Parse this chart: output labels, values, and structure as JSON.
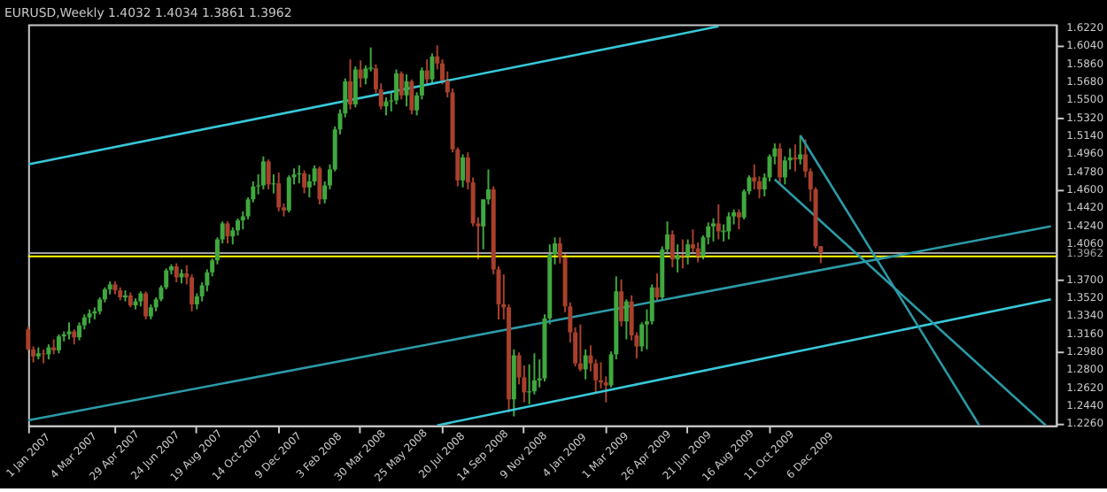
{
  "chart_data": {
    "type": "candlestick",
    "title": "EURUSD,Weekly  1.4032 1.4034 1.3861 1.3962",
    "colors": [
      "#a8402c",
      "#a8402c",
      "#3fa83f",
      "#a8402c",
      "#3fa83f",
      "#a8402c",
      "#3fa83f",
      "#3fa83f",
      "#3fa83f",
      "#a8402c",
      "#3fa83f",
      "#3fa83f",
      "#3fa83f",
      "#3fa83f",
      "#3fa83f",
      "#3fa83f",
      "#3fa83f",
      "#a8402c",
      "#a8402c",
      "#3fa83f",
      "#a8402c",
      "#3fa83f",
      "#3fa83f",
      "#a8402c",
      "#3fa83f",
      "#3fa83f",
      "#3fa83f",
      "#3fa83f",
      "#3fa83f",
      "#a8402c",
      "#3fa83f",
      "#a8402c",
      "#a8402c",
      "#3fa83f",
      "#3fa83f",
      "#3fa83f",
      "#3fa83f",
      "#3fa83f",
      "#3fa83f",
      "#a8402c",
      "#3fa83f",
      "#3fa83f",
      "#3fa83f",
      "#3fa83f",
      "#3fa83f",
      "#3fa83f",
      "#3fa83f",
      "#a8402c",
      "#3fa83f",
      "#a8402c",
      "#a8402c",
      "#3fa83f",
      "#3fa83f",
      "#3fa83f",
      "#a8402c",
      "#3fa83f",
      "#3fa83f",
      "#a8402c",
      "#3fa83f",
      "#3fa83f",
      "#3fa83f",
      "#3fa83f",
      "#3fa83f",
      "#a8402c",
      "#3fa83f",
      "#a8402c",
      "#3fa83f",
      "#3fa83f",
      "#a8402c",
      "#a8402c",
      "#3fa83f",
      "#3fa83f",
      "#3fa83f",
      "#a8402c",
      "#3fa83f",
      "#a8402c",
      "#3fa83f",
      "#3fa83f",
      "#a8402c",
      "#3fa83f",
      "#a8402c",
      "#a8402c",
      "#a8402c",
      "#a8402c",
      "#a8402c",
      "#3fa83f",
      "#a8402c",
      "#a8402c",
      "#a8402c",
      "#3fa83f",
      "#3fa83f",
      "#a8402c",
      "#a8402c",
      "#a8402c",
      "#a8402c",
      "#3fa83f",
      "#a8402c",
      "#a8402c",
      "#3fa83f",
      "#3fa83f",
      "#3fa83f",
      "#3fa83f",
      "#3fa83f",
      "#3fa83f",
      "#a8402c",
      "#a8402c",
      "#a8402c",
      "#a8402c",
      "#a8402c",
      "#3fa83f",
      "#a8402c",
      "#a8402c",
      "#a8402c",
      "#a8402c",
      "#3fa83f",
      "#3fa83f",
      "#a8402c",
      "#3fa83f",
      "#a8402c",
      "#a8402c",
      "#3fa83f",
      "#3fa83f",
      "#3fa83f",
      "#a8402c",
      "#3fa83f",
      "#3fa83f",
      "#a8402c",
      "#3fa83f",
      "#a8402c",
      "#3fa83f",
      "#a8402c",
      "#a8402c",
      "#3fa83f",
      "#3fa83f",
      "#3fa83f",
      "#a8402c",
      "#3fa83f",
      "#3fa83f",
      "#3fa83f",
      "#a8402c",
      "#3fa83f",
      "#3fa83f",
      "#a8402c",
      "#a8402c",
      "#3fa83f",
      "#3fa83f",
      "#3fa83f",
      "#a8402c",
      "#3fa83f",
      "#3fa83f",
      "#a8402c",
      "#3fa83f",
      "#a8402c",
      "#a8402c",
      "#a8402c",
      "#a8402c"
    ],
    "x": [
      "2007-01-01",
      "2007-01-08",
      "2007-01-15",
      "2007-01-22",
      "2007-01-29",
      "2007-02-05",
      "2007-02-12",
      "2007-02-19",
      "2007-02-26",
      "2007-03-05",
      "2007-03-12",
      "2007-03-19",
      "2007-03-26",
      "2007-04-02",
      "2007-04-09",
      "2007-04-16",
      "2007-04-23",
      "2007-04-30",
      "2007-05-07",
      "2007-05-14",
      "2007-05-21",
      "2007-05-28",
      "2007-06-04",
      "2007-06-11",
      "2007-06-18",
      "2007-06-25",
      "2007-07-02",
      "2007-07-09",
      "2007-07-16",
      "2007-07-23",
      "2007-07-30",
      "2007-08-06",
      "2007-08-13",
      "2007-08-20",
      "2007-08-27",
      "2007-09-03",
      "2007-09-10",
      "2007-09-17",
      "2007-09-24",
      "2007-10-01",
      "2007-10-08",
      "2007-10-15",
      "2007-10-22",
      "2007-10-29",
      "2007-11-05",
      "2007-11-12",
      "2007-11-19",
      "2007-11-26",
      "2007-12-03",
      "2007-12-10",
      "2007-12-17",
      "2007-12-24",
      "2007-12-31",
      "2008-01-07",
      "2008-01-14",
      "2008-01-21",
      "2008-01-28",
      "2008-02-04",
      "2008-02-11",
      "2008-02-18",
      "2008-02-25",
      "2008-03-03",
      "2008-03-10",
      "2008-03-17",
      "2008-03-24",
      "2008-03-31",
      "2008-04-07",
      "2008-04-14",
      "2008-04-21",
      "2008-04-28",
      "2008-05-05",
      "2008-05-12",
      "2008-05-19",
      "2008-05-26",
      "2008-06-02",
      "2008-06-09",
      "2008-06-16",
      "2008-06-23",
      "2008-06-30",
      "2008-07-07",
      "2008-07-14",
      "2008-07-21",
      "2008-07-28",
      "2008-08-04",
      "2008-08-11",
      "2008-08-18",
      "2008-08-25",
      "2008-09-01",
      "2008-09-08",
      "2008-09-15",
      "2008-09-22",
      "2008-09-29",
      "2008-10-06",
      "2008-10-13",
      "2008-10-20",
      "2008-10-27",
      "2008-11-03",
      "2008-11-10",
      "2008-11-17",
      "2008-11-24",
      "2008-12-01",
      "2008-12-08",
      "2008-12-15",
      "2008-12-22",
      "2008-12-29",
      "2009-01-05",
      "2009-01-12",
      "2009-01-19",
      "2009-01-26",
      "2009-02-02",
      "2009-02-09",
      "2009-02-16",
      "2009-02-23",
      "2009-03-02",
      "2009-03-09",
      "2009-03-16",
      "2009-03-23",
      "2009-03-30",
      "2009-04-06",
      "2009-04-13",
      "2009-04-20",
      "2009-04-27",
      "2009-05-04",
      "2009-05-11",
      "2009-05-18",
      "2009-05-25",
      "2009-06-01",
      "2009-06-08",
      "2009-06-15",
      "2009-06-22",
      "2009-06-29",
      "2009-07-06",
      "2009-07-13",
      "2009-07-20",
      "2009-07-27",
      "2009-08-03",
      "2009-08-10",
      "2009-08-17",
      "2009-08-24",
      "2009-08-31",
      "2009-09-07",
      "2009-09-14",
      "2009-09-21",
      "2009-09-28",
      "2009-10-05",
      "2009-10-12",
      "2009-10-19",
      "2009-10-26",
      "2009-11-02",
      "2009-11-09",
      "2009-11-16",
      "2009-11-23",
      "2009-11-30",
      "2009-12-07",
      "2009-12-14",
      "2009-12-21"
    ],
    "ohlc": [
      [
        1.32,
        1.323,
        1.299,
        1.3
      ],
      [
        1.3,
        1.303,
        1.287,
        1.293
      ],
      [
        1.293,
        1.302,
        1.29,
        1.296
      ],
      [
        1.296,
        1.3,
        1.286,
        1.295
      ],
      [
        1.295,
        1.305,
        1.29,
        1.302
      ],
      [
        1.302,
        1.31,
        1.295,
        1.299
      ],
      [
        1.299,
        1.315,
        1.296,
        1.313
      ],
      [
        1.313,
        1.318,
        1.308,
        1.315
      ],
      [
        1.315,
        1.327,
        1.31,
        1.318
      ],
      [
        1.318,
        1.32,
        1.305,
        1.312
      ],
      [
        1.312,
        1.327,
        1.309,
        1.324
      ],
      [
        1.324,
        1.335,
        1.32,
        1.332
      ],
      [
        1.332,
        1.34,
        1.326,
        1.336
      ],
      [
        1.336,
        1.342,
        1.33,
        1.338
      ],
      [
        1.338,
        1.352,
        1.335,
        1.35
      ],
      [
        1.35,
        1.362,
        1.347,
        1.36
      ],
      [
        1.36,
        1.368,
        1.355,
        1.365
      ],
      [
        1.365,
        1.368,
        1.355,
        1.359
      ],
      [
        1.359,
        1.362,
        1.349,
        1.352
      ],
      [
        1.352,
        1.359,
        1.348,
        1.354
      ],
      [
        1.354,
        1.357,
        1.342,
        1.344
      ],
      [
        1.344,
        1.351,
        1.34,
        1.348
      ],
      [
        1.348,
        1.358,
        1.343,
        1.356
      ],
      [
        1.356,
        1.358,
        1.33,
        1.333
      ],
      [
        1.333,
        1.345,
        1.33,
        1.342
      ],
      [
        1.342,
        1.352,
        1.338,
        1.35
      ],
      [
        1.35,
        1.364,
        1.348,
        1.362
      ],
      [
        1.362,
        1.381,
        1.36,
        1.379
      ],
      [
        1.379,
        1.385,
        1.375,
        1.383
      ],
      [
        1.383,
        1.386,
        1.367,
        1.372
      ],
      [
        1.372,
        1.38,
        1.366,
        1.376
      ],
      [
        1.376,
        1.384,
        1.365,
        1.372
      ],
      [
        1.372,
        1.375,
        1.338,
        1.345
      ],
      [
        1.345,
        1.356,
        1.34,
        1.353
      ],
      [
        1.353,
        1.367,
        1.348,
        1.364
      ],
      [
        1.364,
        1.38,
        1.358,
        1.377
      ],
      [
        1.377,
        1.391,
        1.373,
        1.389
      ],
      [
        1.389,
        1.412,
        1.385,
        1.41
      ],
      [
        1.41,
        1.428,
        1.406,
        1.426
      ],
      [
        1.426,
        1.428,
        1.406,
        1.413
      ],
      [
        1.413,
        1.422,
        1.405,
        1.419
      ],
      [
        1.419,
        1.431,
        1.414,
        1.429
      ],
      [
        1.429,
        1.438,
        1.42,
        1.433
      ],
      [
        1.433,
        1.452,
        1.43,
        1.45
      ],
      [
        1.45,
        1.468,
        1.447,
        1.463
      ],
      [
        1.463,
        1.475,
        1.455,
        1.464
      ],
      [
        1.464,
        1.493,
        1.46,
        1.488
      ],
      [
        1.488,
        1.49,
        1.46,
        1.465
      ],
      [
        1.465,
        1.475,
        1.456,
        1.466
      ],
      [
        1.466,
        1.477,
        1.438,
        1.442
      ],
      [
        1.442,
        1.446,
        1.433,
        1.439
      ],
      [
        1.439,
        1.474,
        1.437,
        1.472
      ],
      [
        1.472,
        1.481,
        1.465,
        1.475
      ],
      [
        1.475,
        1.484,
        1.466,
        1.476
      ],
      [
        1.476,
        1.479,
        1.456,
        1.462
      ],
      [
        1.462,
        1.475,
        1.452,
        1.468
      ],
      [
        1.468,
        1.484,
        1.464,
        1.481
      ],
      [
        1.481,
        1.483,
        1.445,
        1.45
      ],
      [
        1.45,
        1.468,
        1.446,
        1.464
      ],
      [
        1.464,
        1.485,
        1.46,
        1.48
      ],
      [
        1.48,
        1.523,
        1.478,
        1.52
      ],
      [
        1.52,
        1.54,
        1.515,
        1.536
      ],
      [
        1.536,
        1.571,
        1.532,
        1.568
      ],
      [
        1.568,
        1.59,
        1.54,
        1.545
      ],
      [
        1.545,
        1.583,
        1.542,
        1.58
      ],
      [
        1.58,
        1.589,
        1.562,
        1.571
      ],
      [
        1.571,
        1.584,
        1.565,
        1.581
      ],
      [
        1.581,
        1.602,
        1.578,
        1.581
      ],
      [
        1.581,
        1.585,
        1.556,
        1.56
      ],
      [
        1.56,
        1.566,
        1.54,
        1.543
      ],
      [
        1.543,
        1.552,
        1.534,
        1.548
      ],
      [
        1.548,
        1.558,
        1.538,
        1.549
      ],
      [
        1.549,
        1.58,
        1.545,
        1.576
      ],
      [
        1.576,
        1.578,
        1.55,
        1.554
      ],
      [
        1.554,
        1.575,
        1.543,
        1.568
      ],
      [
        1.568,
        1.57,
        1.535,
        1.539
      ],
      [
        1.539,
        1.557,
        1.534,
        1.554
      ],
      [
        1.554,
        1.582,
        1.55,
        1.579
      ],
      [
        1.579,
        1.59,
        1.565,
        1.57
      ],
      [
        1.57,
        1.596,
        1.566,
        1.593
      ],
      [
        1.593,
        1.604,
        1.58,
        1.586
      ],
      [
        1.586,
        1.59,
        1.565,
        1.569
      ],
      [
        1.569,
        1.578,
        1.552,
        1.557
      ],
      [
        1.557,
        1.561,
        1.497,
        1.5
      ],
      [
        1.5,
        1.502,
        1.463,
        1.469
      ],
      [
        1.469,
        1.495,
        1.462,
        1.492
      ],
      [
        1.492,
        1.497,
        1.46,
        1.467
      ],
      [
        1.467,
        1.472,
        1.423,
        1.426
      ],
      [
        1.426,
        1.432,
        1.39,
        1.423
      ],
      [
        1.423,
        1.45,
        1.4,
        1.45
      ],
      [
        1.45,
        1.48,
        1.445,
        1.46
      ],
      [
        1.46,
        1.463,
        1.375,
        1.38
      ],
      [
        1.38,
        1.383,
        1.33,
        1.345
      ],
      [
        1.345,
        1.375,
        1.33,
        1.342
      ],
      [
        1.342,
        1.345,
        1.237,
        1.25
      ],
      [
        1.25,
        1.3,
        1.233,
        1.294
      ],
      [
        1.294,
        1.297,
        1.265,
        1.272
      ],
      [
        1.272,
        1.284,
        1.247,
        1.257
      ],
      [
        1.257,
        1.285,
        1.245,
        1.258
      ],
      [
        1.258,
        1.296,
        1.255,
        1.269
      ],
      [
        1.269,
        1.29,
        1.262,
        1.271
      ],
      [
        1.271,
        1.335,
        1.268,
        1.331
      ],
      [
        1.331,
        1.405,
        1.325,
        1.395
      ],
      [
        1.395,
        1.412,
        1.385,
        1.406
      ],
      [
        1.406,
        1.412,
        1.386,
        1.392
      ],
      [
        1.392,
        1.396,
        1.337,
        1.343
      ],
      [
        1.343,
        1.347,
        1.307,
        1.317
      ],
      [
        1.317,
        1.322,
        1.283,
        1.286
      ],
      [
        1.286,
        1.325,
        1.278,
        1.28
      ],
      [
        1.28,
        1.3,
        1.27,
        1.294
      ],
      [
        1.294,
        1.304,
        1.278,
        1.286
      ],
      [
        1.286,
        1.29,
        1.257,
        1.269
      ],
      [
        1.269,
        1.287,
        1.261,
        1.267
      ],
      [
        1.267,
        1.273,
        1.247,
        1.264
      ],
      [
        1.264,
        1.298,
        1.262,
        1.295
      ],
      [
        1.295,
        1.373,
        1.29,
        1.358
      ],
      [
        1.358,
        1.37,
        1.323,
        1.328
      ],
      [
        1.328,
        1.35,
        1.31,
        1.348
      ],
      [
        1.348,
        1.354,
        1.309,
        1.314
      ],
      [
        1.314,
        1.317,
        1.291,
        1.303
      ],
      [
        1.303,
        1.327,
        1.298,
        1.325
      ],
      [
        1.325,
        1.34,
        1.3,
        1.328
      ],
      [
        1.328,
        1.365,
        1.325,
        1.362
      ],
      [
        1.362,
        1.376,
        1.348,
        1.352
      ],
      [
        1.352,
        1.403,
        1.35,
        1.4
      ],
      [
        1.4,
        1.428,
        1.395,
        1.415
      ],
      [
        1.415,
        1.419,
        1.382,
        1.39
      ],
      [
        1.39,
        1.405,
        1.377,
        1.394
      ],
      [
        1.394,
        1.41,
        1.381,
        1.393
      ],
      [
        1.393,
        1.41,
        1.385,
        1.405
      ],
      [
        1.405,
        1.42,
        1.395,
        1.401
      ],
      [
        1.401,
        1.407,
        1.387,
        1.393
      ],
      [
        1.393,
        1.414,
        1.39,
        1.412
      ],
      [
        1.412,
        1.427,
        1.405,
        1.423
      ],
      [
        1.423,
        1.431,
        1.408,
        1.426
      ],
      [
        1.426,
        1.445,
        1.41,
        1.418
      ],
      [
        1.418,
        1.425,
        1.408,
        1.418
      ],
      [
        1.418,
        1.437,
        1.41,
        1.433
      ],
      [
        1.433,
        1.44,
        1.425,
        1.437
      ],
      [
        1.437,
        1.44,
        1.42,
        1.432
      ],
      [
        1.432,
        1.46,
        1.43,
        1.458
      ],
      [
        1.458,
        1.474,
        1.455,
        1.472
      ],
      [
        1.472,
        1.485,
        1.46,
        1.468
      ],
      [
        1.468,
        1.473,
        1.451,
        1.46
      ],
      [
        1.46,
        1.476,
        1.453,
        1.472
      ],
      [
        1.472,
        1.495,
        1.468,
        1.493
      ],
      [
        1.493,
        1.506,
        1.485,
        1.501
      ],
      [
        1.501,
        1.506,
        1.465,
        1.472
      ],
      [
        1.472,
        1.493,
        1.465,
        1.489
      ],
      [
        1.489,
        1.501,
        1.48,
        1.492
      ],
      [
        1.492,
        1.505,
        1.478,
        1.49
      ],
      [
        1.49,
        1.514,
        1.485,
        1.495
      ],
      [
        1.495,
        1.51,
        1.472,
        1.478
      ],
      [
        1.478,
        1.481,
        1.448,
        1.46
      ],
      [
        1.46,
        1.462,
        1.401,
        1.4032
      ],
      [
        1.4032,
        1.4034,
        1.3861,
        1.3962
      ]
    ],
    "series": [
      {
        "type": "line",
        "color": "#38c8d8",
        "x": [
          "2007-01-01",
          "2009-08-03"
        ],
        "values": [
          1.485,
          1.623
        ]
      },
      {
        "type": "line",
        "color": "#2c9aa8",
        "x": [
          "2007-01-01",
          "2010-11-01"
        ],
        "values": [
          1.229,
          1.423
        ]
      },
      {
        "type": "line",
        "color": "#38c8d8",
        "x": [
          "2008-07-14",
          "2010-11-01"
        ],
        "values": [
          1.224,
          1.35
        ]
      },
      {
        "type": "line",
        "color": "#2c9aa8",
        "x": [
          "2009-11-23",
          "2010-07-26"
        ],
        "values": [
          1.514,
          1.224
        ]
      },
      {
        "type": "line",
        "color": "#2c9aa8",
        "x": [
          "2009-10-19",
          "2010-10-25"
        ],
        "values": [
          1.47,
          1.224
        ]
      }
    ],
    "ref_lines": [
      {
        "axis": "y",
        "value": 1.3962,
        "label": "1.3962",
        "color": "#a0a0a0"
      },
      {
        "axis": "y",
        "value": 1.393,
        "color": "#ffff00"
      }
    ],
    "xlim": [
      "2007-01-01",
      "2010-11-08"
    ],
    "xticks": [
      {
        "value": "2007-01-01",
        "label": "1 Jan 2007"
      },
      {
        "value": "2007-03-04",
        "label": "4 Mar 2007"
      },
      {
        "value": "2007-04-29",
        "label": "29 Apr 2007"
      },
      {
        "value": "2007-06-24",
        "label": "24 Jun 2007"
      },
      {
        "value": "2007-08-19",
        "label": "19 Aug 2007"
      },
      {
        "value": "2007-10-14",
        "label": "14 Oct 2007"
      },
      {
        "value": "2007-12-09",
        "label": "9 Dec 2007"
      },
      {
        "value": "2008-02-03",
        "label": "3 Feb 2008"
      },
      {
        "value": "2008-03-30",
        "label": "30 Mar 2008"
      },
      {
        "value": "2008-05-25",
        "label": "25 May 2008"
      },
      {
        "value": "2008-07-20",
        "label": "20 Jul 2008"
      },
      {
        "value": "2008-09-14",
        "label": "14 Sep 2008"
      },
      {
        "value": "2008-11-09",
        "label": "9 Nov 2008"
      },
      {
        "value": "2009-01-04",
        "label": "4 Jan 2009"
      },
      {
        "value": "2009-03-01",
        "label": "1 Mar 2009"
      },
      {
        "value": "2009-04-26",
        "label": "26 Apr 2009"
      },
      {
        "value": "2009-06-21",
        "label": "21 Jun 2009"
      },
      {
        "value": "2009-08-16",
        "label": "16 Aug 2009"
      },
      {
        "value": "2009-10-11",
        "label": "11 Oct 2009"
      },
      {
        "value": "2009-12-06",
        "label": "6 Dec 2009"
      }
    ],
    "ylim": [
      1.224,
      1.625
    ],
    "yticks": [
      {
        "value": 1.622,
        "label": "1.6220"
      },
      {
        "value": 1.604,
        "label": "1.6040"
      },
      {
        "value": 1.586,
        "label": "1.5860"
      },
      {
        "value": 1.568,
        "label": "1.5680"
      },
      {
        "value": 1.55,
        "label": "1.5500"
      },
      {
        "value": 1.532,
        "label": "1.5320"
      },
      {
        "value": 1.514,
        "label": "1.5140"
      },
      {
        "value": 1.496,
        "label": "1.4960"
      },
      {
        "value": 1.478,
        "label": "1.4780"
      },
      {
        "value": 1.46,
        "label": "1.4600"
      },
      {
        "value": 1.442,
        "label": "1.4420"
      },
      {
        "value": 1.424,
        "label": "1.4240"
      },
      {
        "value": 1.406,
        "label": "1.4060"
      },
      {
        "value": 1.37,
        "label": "1.3700"
      },
      {
        "value": 1.352,
        "label": "1.3520"
      },
      {
        "value": 1.334,
        "label": "1.3340"
      },
      {
        "value": 1.316,
        "label": "1.3160"
      },
      {
        "value": 1.298,
        "label": "1.2980"
      },
      {
        "value": 1.28,
        "label": "1.2800"
      },
      {
        "value": 1.262,
        "label": "1.2620"
      },
      {
        "value": 1.244,
        "label": "1.2440"
      },
      {
        "value": 1.226,
        "label": "1.2260"
      }
    ],
    "grid": false
  }
}
